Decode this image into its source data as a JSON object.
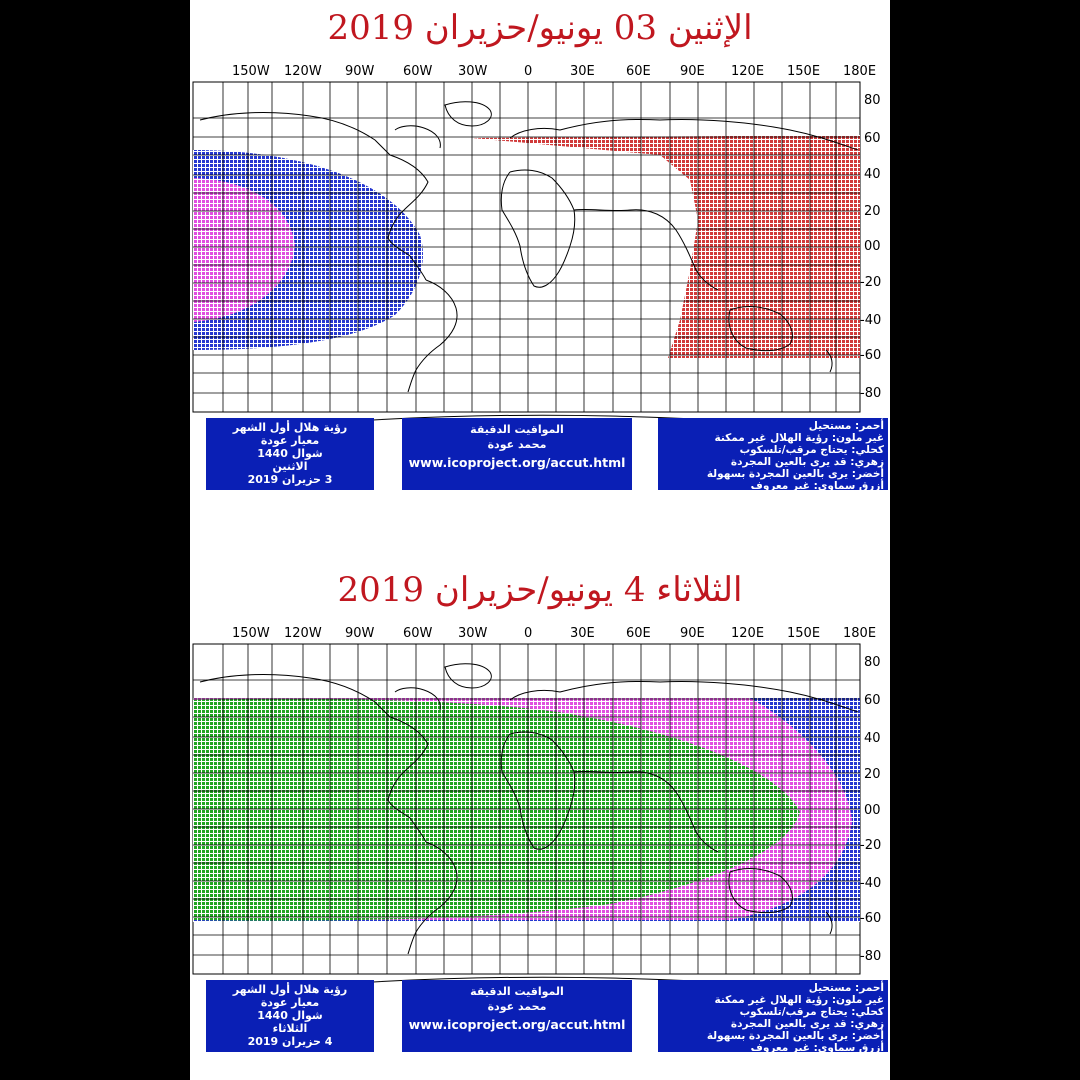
{
  "panels": [
    {
      "title": "الإثنين 03 يونيو/حزيران 2019",
      "info_left": [
        "رؤية هلال أول الشهر",
        "معيار عودة",
        "شوال 1440",
        "الاثنين",
        "3 حزيران 2019"
      ],
      "info_middle": {
        "line1": "المواقيت الدقيقة",
        "line2": "محمد عودة",
        "url": "www.icoproject.org/accut.html"
      }
    },
    {
      "title": "الثلاثاء 4 يونيو/حزيران 2019",
      "info_left": [
        "رؤية هلال أول الشهر",
        "معيار عودة",
        "شوال 1440",
        "الثلاثاء",
        "4 حزيران 2019"
      ],
      "info_middle": {
        "line1": "المواقيت الدقيقة",
        "line2": "محمد عودة",
        "url": "www.icoproject.org/accut.html"
      }
    }
  ],
  "legend": [
    "أحمر: مستحيل",
    "غير ملون: رؤية الهلال غير ممكنة",
    "كحلي: يحتاج مرقب/تلسكوب",
    "زهري: قد يرى بالعين المجردة",
    "أخضر: يرى بالعين المجردة بسهولة",
    "أزرق سماوي: غير معروف"
  ],
  "axes": {
    "lon_labels": [
      "150W",
      "120W",
      "90W",
      "60W",
      "30W",
      "0",
      "30E",
      "60E",
      "90E",
      "120E",
      "150E",
      "180E"
    ],
    "lat_labels": [
      "80",
      "60",
      "40",
      "20",
      "00",
      "-20",
      "-40",
      "-60",
      "-80"
    ]
  },
  "colors": {
    "title": "#c0171f",
    "info_box": "#0a1fb5",
    "impossible_red": "#c4272a",
    "telescope_navy": "#1a2fc8",
    "naked_eye_pink": "#e040e0",
    "easy_green": "#1aa01a"
  }
}
